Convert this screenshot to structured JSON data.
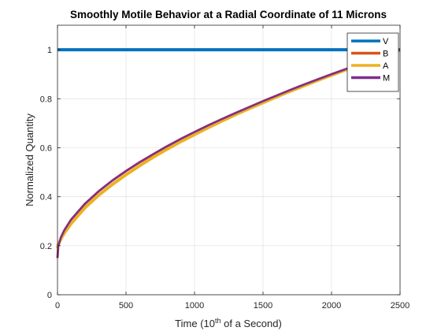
{
  "chart_data": {
    "type": "line",
    "title": "Smoothly Motile Behavior at a Radial Coordinate of 11 Microns",
    "xlabel": {
      "prefix": "Time (10",
      "superscript": "th",
      "suffix": " of a Second)"
    },
    "ylabel": "Normalized Quantity",
    "xlim": [
      0,
      2500
    ],
    "ylim": [
      0,
      1.1
    ],
    "xticks": [
      0,
      500,
      1000,
      1500,
      2000,
      2500
    ],
    "xtick_labels": [
      "0",
      "500",
      "1000",
      "1500",
      "2000",
      "2500"
    ],
    "yticks": [
      0,
      0.2,
      0.4,
      0.6,
      0.8,
      1
    ],
    "ytick_labels": [
      "0",
      "0.2",
      "0.4",
      "0.6",
      "0.8",
      "1"
    ],
    "grid": true,
    "legend_position": "top-right",
    "x": [
      0,
      5,
      25,
      50,
      100,
      200,
      300,
      400,
      500,
      600,
      700,
      800,
      900,
      1000,
      1100,
      1200,
      1300,
      1400,
      1500,
      1600,
      1700,
      1800,
      1900,
      2000,
      2100,
      2200,
      2300,
      2400,
      2500
    ],
    "series": [
      {
        "name": "V",
        "color": "#0072BD",
        "values": [
          1,
          1,
          1,
          1,
          1,
          1,
          1,
          1,
          1,
          1,
          1,
          1,
          1,
          1,
          1,
          1,
          1,
          1,
          1,
          1,
          1,
          1,
          1,
          1,
          1,
          1,
          1,
          1,
          1
        ]
      },
      {
        "name": "B",
        "color": "#D95319",
        "values": [
          0.15,
          0.196,
          0.234,
          0.263,
          0.307,
          0.371,
          0.422,
          0.466,
          0.505,
          0.541,
          0.574,
          0.606,
          0.636,
          0.664,
          0.691,
          0.717,
          0.742,
          0.766,
          0.79,
          0.813,
          0.836,
          0.858,
          0.879,
          0.9,
          0.92,
          0.94,
          0.96,
          0.98,
          1.0
        ]
      },
      {
        "name": "A",
        "color": "#EDB120",
        "values": [
          0.19,
          0.205,
          0.228,
          0.252,
          0.291,
          0.355,
          0.406,
          0.45,
          0.49,
          0.527,
          0.562,
          0.594,
          0.625,
          0.654,
          0.682,
          0.709,
          0.735,
          0.76,
          0.784,
          0.808,
          0.831,
          0.853,
          0.875,
          0.896,
          0.917,
          0.938,
          0.958,
          0.978,
          0.998
        ]
      },
      {
        "name": "M",
        "color": "#7E2F8E",
        "values": [
          0.15,
          0.196,
          0.234,
          0.263,
          0.307,
          0.371,
          0.422,
          0.466,
          0.505,
          0.541,
          0.574,
          0.606,
          0.636,
          0.664,
          0.691,
          0.717,
          0.742,
          0.766,
          0.79,
          0.813,
          0.836,
          0.858,
          0.879,
          0.9,
          0.92,
          0.94,
          0.96,
          0.98,
          1.0
        ]
      }
    ]
  }
}
